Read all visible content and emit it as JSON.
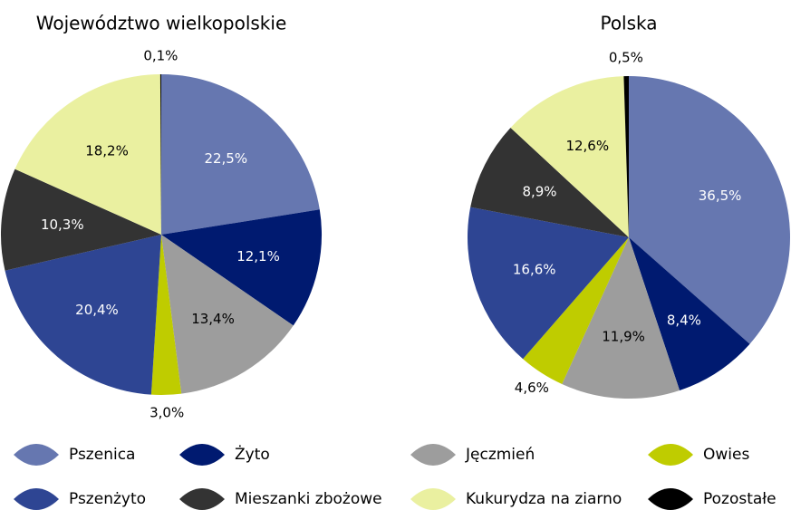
{
  "chart_data": [
    {
      "type": "pie",
      "title": "Województwo wielkopolskie",
      "categories": [
        "Pszenica",
        "Żyto",
        "Jęczmień",
        "Owies",
        "Pszenżyto",
        "Mieszanki zbożowe",
        "Kukurydza na ziarno",
        "Pozostałe"
      ],
      "colors": [
        "#6677b0",
        "#001a70",
        "#9d9d9d",
        "#bfcc00",
        "#2e4593",
        "#333333",
        "#eaf0a0",
        "#000000"
      ],
      "values": [
        22.5,
        12.1,
        13.4,
        3.0,
        20.4,
        10.3,
        18.2,
        0.1
      ],
      "value_labels": [
        "22,5%",
        "12,1%",
        "13,4%",
        "3,0%",
        "20,4%",
        "10,3%",
        "18,2%",
        "0,1%"
      ]
    },
    {
      "type": "pie",
      "title": "Polska",
      "values": [
        36.5,
        8.4,
        11.9,
        4.6,
        16.6,
        8.9,
        12.6,
        0.5
      ],
      "value_labels": [
        "36,5%",
        "8,4%",
        "11,9%",
        "4,6%",
        "16,6%",
        "8,9%",
        "12,6%",
        "0,5%"
      ]
    }
  ]
}
